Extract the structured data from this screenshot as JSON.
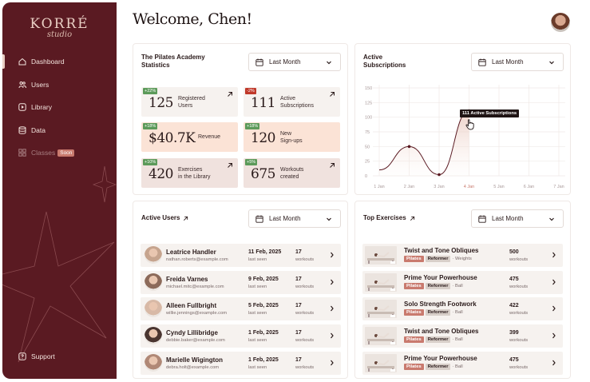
{
  "brand": {
    "name": "KORRÉ",
    "sub": "studio"
  },
  "nav": [
    {
      "label": "Dashboard",
      "icon": "home-icon",
      "active": true
    },
    {
      "label": "Users",
      "icon": "users-icon"
    },
    {
      "label": "Library",
      "icon": "play-icon"
    },
    {
      "label": "Data",
      "icon": "database-icon"
    },
    {
      "label": "Classes",
      "icon": "grid-icon",
      "badge": "Soon"
    }
  ],
  "support": "Support",
  "welcome": "Welcome, Chen!",
  "dropdown_label": "Last Month",
  "stats_card": {
    "title": "The Pilates Academy\nStatistics",
    "stats": [
      {
        "badge": "+22%",
        "value": "125",
        "label": "Registered\nUsers",
        "tone": "neutral"
      },
      {
        "badge": "-2%",
        "value": "111",
        "label": "Active\nSubscriptions",
        "tone": "neutral"
      },
      {
        "badge": "+18%",
        "value": "$40.7K",
        "label": "Revenue",
        "tone": "peach"
      },
      {
        "badge": "+18%",
        "value": "120",
        "label": "New\nSign-ups",
        "tone": "peach"
      },
      {
        "badge": "+10%",
        "value": "420",
        "label": "Exercises\nin the Library",
        "tone": "rose"
      },
      {
        "badge": "+5%",
        "value": "675",
        "label": "Workouts\ncreated",
        "tone": "rose"
      }
    ]
  },
  "chart_card": {
    "title": "Active\nSubscriptions",
    "tooltip": "111 Active Subscriptions"
  },
  "chart_data": {
    "type": "line",
    "categories": [
      "1 Jan",
      "2 Jan",
      "3 Jan",
      "4 Jan",
      "5 Jan",
      "6 Jan",
      "7 Jan"
    ],
    "values": [
      10,
      50,
      2,
      111,
      null,
      null,
      null
    ],
    "y_ticks": [
      "150",
      "125",
      "100",
      "75",
      "50",
      "25",
      "0"
    ],
    "ylim": [
      0,
      150
    ],
    "highlight_index": 3,
    "grid": true
  },
  "active_users": {
    "title": "Active Users",
    "rows": [
      {
        "name": "Leatrice Handler",
        "email": "nathan.roberts@example.com",
        "date": "11 Feb, 2025",
        "seen": "last seen",
        "count": "17",
        "unit": "workouts"
      },
      {
        "name": "Freida Varnes",
        "email": "michael.mitc@example.com",
        "date": "9 Feb, 2025",
        "seen": "last seen",
        "count": "17",
        "unit": "workouts"
      },
      {
        "name": "Alleen Fullbright",
        "email": "willie.jennings@example.com",
        "date": "5 Feb, 2025",
        "seen": "last seen",
        "count": "17",
        "unit": "workouts"
      },
      {
        "name": "Cyndy Lillibridge",
        "email": "debbie.baker@example.com",
        "date": "1 Feb, 2025",
        "seen": "last seen",
        "count": "17",
        "unit": "workouts"
      },
      {
        "name": "Marielle Wigington",
        "email": "debra.holt@example.com",
        "date": "1 Feb, 2025",
        "seen": "last seen",
        "count": "17",
        "unit": "workouts"
      }
    ]
  },
  "top_exercises": {
    "title": "Top Exercises",
    "rows": [
      {
        "name": "Twist and Tone Obliques",
        "tag1": "Pilates",
        "tag2": "Reformer",
        "tag3": "· Weights",
        "count": "500",
        "unit": "workouts"
      },
      {
        "name": "Prime Your Powerhouse",
        "tag1": "Pilates",
        "tag2": "Reformer",
        "tag3": "· Ball",
        "count": "475",
        "unit": "workouts"
      },
      {
        "name": "Solo Strength Footwork",
        "tag1": "Pilates",
        "tag2": "Reformer",
        "tag3": "· Ball",
        "count": "422",
        "unit": "workouts"
      },
      {
        "name": "Twist and Tone Obliques",
        "tag1": "Pilates",
        "tag2": "Reformer",
        "tag3": "· Ball",
        "count": "399",
        "unit": "workouts"
      },
      {
        "name": "Prime Your Powerhouse",
        "tag1": "Pilates",
        "tag2": "Reformer",
        "tag3": "· Ball",
        "count": "475",
        "unit": "workouts"
      }
    ]
  },
  "colors": {
    "sidebar": "#5a1a22",
    "accent": "#c97a6e",
    "badge_green": "#5c9a5a",
    "badge_red": "#c0392b"
  }
}
